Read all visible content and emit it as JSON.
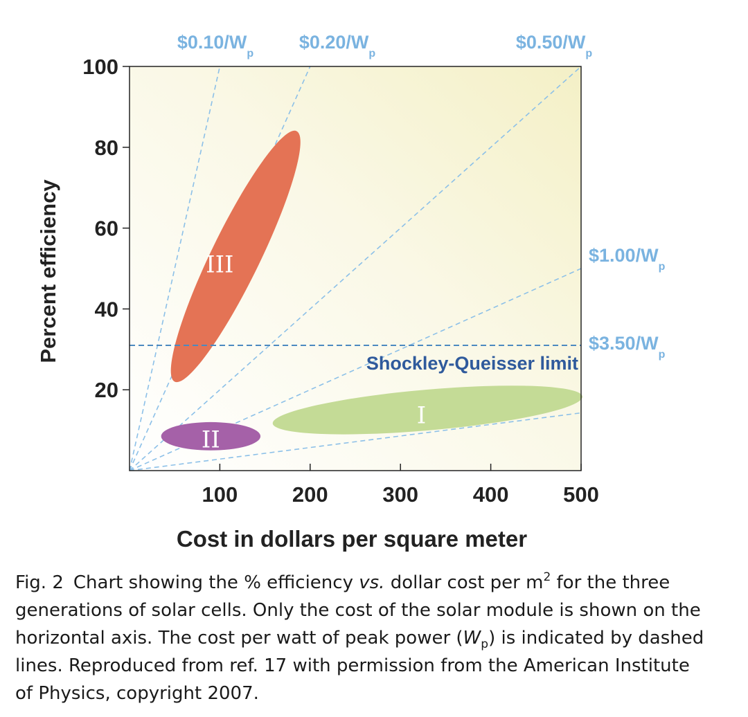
{
  "chart_data": {
    "type": "scatter",
    "title": "",
    "xlabel": "Cost in dollars per square meter",
    "ylabel": "Percent efficiency",
    "xlim": [
      0,
      500
    ],
    "ylim": [
      0,
      100
    ],
    "x_ticks": [
      100,
      200,
      300,
      400,
      500
    ],
    "y_ticks": [
      20,
      40,
      60,
      80,
      100
    ],
    "cost_per_watt_lines": [
      {
        "value": 0.1,
        "text": "$0.10/W",
        "sub": "p"
      },
      {
        "value": 0.2,
        "text": "$0.20/W",
        "sub": "p"
      },
      {
        "value": 0.5,
        "text": "$0.50/W",
        "sub": "p"
      },
      {
        "value": 1.0,
        "text": "$1.00/W",
        "sub": "p"
      },
      {
        "value": 3.5,
        "text": "$3.50/W",
        "sub": "p"
      }
    ],
    "shockley_queisser": {
      "label": "Shockley-Queisser limit",
      "efficiency": 31
    },
    "regions": [
      {
        "label": "III",
        "generation": 3,
        "cost_range": [
          50,
          185
        ],
        "efficiency_range": [
          22,
          84
        ]
      },
      {
        "label": "II",
        "generation": 2,
        "cost_range": [
          35,
          145
        ],
        "efficiency_range": [
          5,
          12
        ]
      },
      {
        "label": "I",
        "generation": 1,
        "cost_range": [
          160,
          500
        ],
        "efficiency_range": [
          9,
          21
        ]
      }
    ]
  },
  "colors": {
    "sweet_spot": "#f3efc5",
    "region_III": "#e47355",
    "region_II": "#a561a8",
    "region_I": "#c4db96",
    "cpw_line": "#8cc0e8",
    "cpw_label": "#7ab3e0",
    "sq_line": "#4b89c0",
    "sq_label": "#2f5a9c",
    "axis": "#222222"
  },
  "caption": {
    "fig_label": "Fig. 2",
    "part1": "Chart showing the % efficiency ",
    "vs": "vs.",
    "part2": " dollar cost per m",
    "m_sup": "2",
    "part3": " for the three generations of solar cells. Only the cost of the solar module is shown on the horizontal axis. The cost per watt of peak power (",
    "wp_w": "W",
    "wp_sub": "p",
    "part4": ") is indicated by dashed lines. Reproduced from ref. 17 with permission from the American Institute of Physics, copyright 2007."
  }
}
